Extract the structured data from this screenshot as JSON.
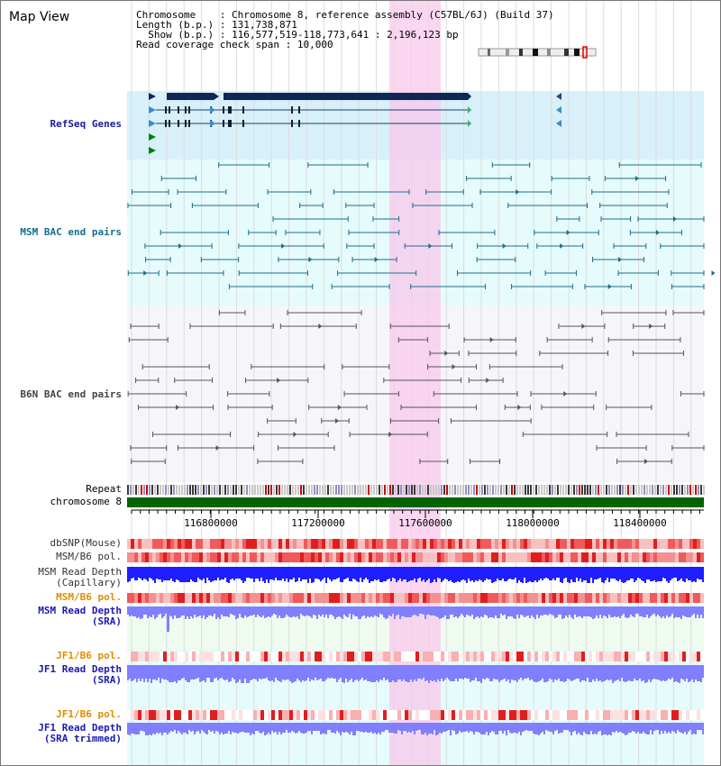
{
  "view_title": "Map View",
  "info": {
    "chromosome_label": "Chromosome",
    "chromosome_value": "Chromosome 8, reference assembly (C57BL/6J) (Build 37)",
    "length_label": "Length (b.p.)",
    "length_value": "131,738,871",
    "show_label": "Show (b.p.)",
    "show_value": "116,577,519-118,773,641 : 2,196,123 bp",
    "coverage_label": "Read coverage check span",
    "coverage_value": "10,000"
  },
  "tracks": {
    "refseq": "RefSeq Genes",
    "msm_bac": "MSM BAC end pairs",
    "b6n_bac": "B6N BAC end pairs",
    "repeat": "Repeat",
    "chromosome": "chromosome 8",
    "dbsnp": "dbSNP(Mouse)",
    "msm_b6_pol_1": "MSM/B6 pol.",
    "msm_read_depth_cap_1": "MSM Read Depth",
    "msm_read_depth_cap_2": "(Capillary)",
    "msm_b6_pol_2": "MSM/B6 pol.",
    "msm_read_depth_sra_1": "MSM Read Depth",
    "msm_read_depth_sra_2": "(SRA)",
    "jf1_b6_pol_1": "JF1/B6 pol.",
    "jf1_read_depth_sra_1": "JF1 Read Depth",
    "jf1_read_depth_sra_2": "(SRA)",
    "jf1_b6_pol_2": "JF1/B6 pol.",
    "jf1_read_depth_trim_1": "JF1 Read Depth",
    "jf1_read_depth_trim_2": "(SRA trimmed)"
  },
  "axis_ticks": [
    "116800000",
    "117200000",
    "117600000",
    "118000000",
    "118400000"
  ],
  "colors": {
    "refseq_label": "#1a1aa0",
    "msm_label": "#146e8c",
    "b6n_label": "#333333",
    "orange_label": "#e08c00",
    "blue_label": "#1a1ab4",
    "highlight": "#f8c8ec",
    "chromosome_bar": "#006400",
    "depth_blue": "#1e1eff",
    "depth_light": "#8080ff"
  }
}
